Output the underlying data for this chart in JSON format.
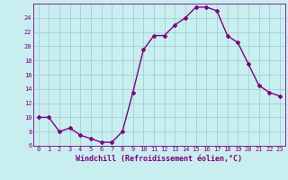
{
  "x": [
    0,
    1,
    2,
    3,
    4,
    5,
    6,
    7,
    8,
    9,
    10,
    11,
    12,
    13,
    14,
    15,
    16,
    17,
    18,
    19,
    20,
    21,
    22,
    23
  ],
  "y": [
    10,
    10,
    8,
    8.5,
    7.5,
    7,
    6.5,
    6.5,
    8,
    13.5,
    19.5,
    21.5,
    21.5,
    23,
    24,
    25.5,
    25.5,
    25,
    21.5,
    20.5,
    17.5,
    14.5,
    13.5,
    13
  ],
  "line_color": "#800080",
  "marker": "D",
  "marker_size": 2,
  "bg_color": "#c8eef0",
  "grid_color": "#99cccc",
  "xlabel": "Windchill (Refroidissement éolien,°C)",
  "ylim": [
    6,
    26
  ],
  "yticks": [
    6,
    8,
    10,
    12,
    14,
    16,
    18,
    20,
    22,
    24
  ],
  "xticks": [
    0,
    1,
    2,
    3,
    4,
    5,
    6,
    7,
    8,
    9,
    10,
    11,
    12,
    13,
    14,
    15,
    16,
    17,
    18,
    19,
    20,
    21,
    22,
    23
  ],
  "tick_color": "#800080",
  "tick_fontsize": 5.0,
  "xlabel_fontsize": 6.0,
  "line_width": 1.0
}
